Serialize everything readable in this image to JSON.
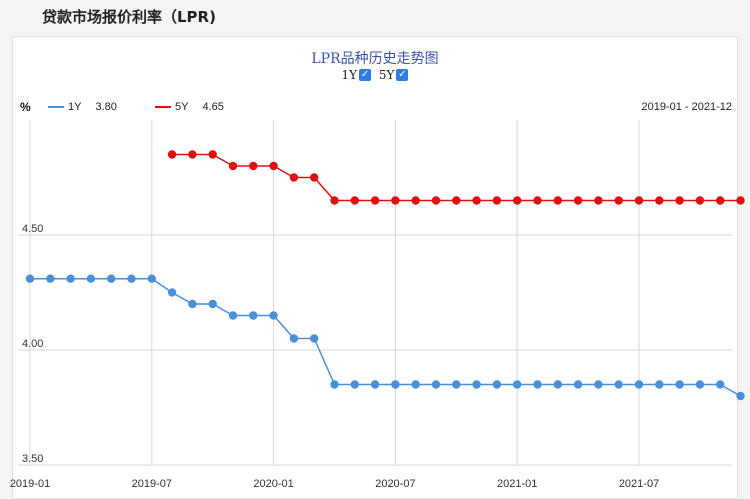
{
  "page": {
    "title": "贷款市场报价利率（LPR)"
  },
  "chart": {
    "title": "LPR品种历史走势图",
    "toggles": [
      {
        "label": "1Y",
        "checked": true
      },
      {
        "label": "5Y",
        "checked": true
      }
    ],
    "unit": "%",
    "date_range": "2019-01 - 2021-12"
  },
  "legend": [
    {
      "name": "1Y",
      "value": "3.80",
      "color": "#4a90d9"
    },
    {
      "name": "5Y",
      "value": "4.65",
      "color": "#e01010"
    }
  ],
  "chart_data": {
    "type": "line",
    "x": [
      "2019-01",
      "2019-02",
      "2019-03",
      "2019-04",
      "2019-05",
      "2019-06",
      "2019-07",
      "2019-08",
      "2019-09",
      "2019-10",
      "2019-11",
      "2019-12",
      "2020-01",
      "2020-02",
      "2020-03",
      "2020-04",
      "2020-05",
      "2020-06",
      "2020-07",
      "2020-08",
      "2020-09",
      "2020-10",
      "2020-11",
      "2020-12",
      "2021-01",
      "2021-02",
      "2021-03",
      "2021-04",
      "2021-05",
      "2021-06",
      "2021-07",
      "2021-08",
      "2021-09",
      "2021-10",
      "2021-11",
      "2021-12"
    ],
    "series": [
      {
        "name": "1Y",
        "color": "#4a90d9",
        "values": [
          4.31,
          4.31,
          4.31,
          4.31,
          4.31,
          4.31,
          4.31,
          4.25,
          4.2,
          4.2,
          4.15,
          4.15,
          4.15,
          4.05,
          4.05,
          3.85,
          3.85,
          3.85,
          3.85,
          3.85,
          3.85,
          3.85,
          3.85,
          3.85,
          3.85,
          3.85,
          3.85,
          3.85,
          3.85,
          3.85,
          3.85,
          3.85,
          3.85,
          3.85,
          3.85,
          3.8
        ]
      },
      {
        "name": "5Y",
        "color": "#e01010",
        "values": [
          null,
          null,
          null,
          null,
          null,
          null,
          null,
          4.85,
          4.85,
          4.85,
          4.8,
          4.8,
          4.8,
          4.75,
          4.75,
          4.65,
          4.65,
          4.65,
          4.65,
          4.65,
          4.65,
          4.65,
          4.65,
          4.65,
          4.65,
          4.65,
          4.65,
          4.65,
          4.65,
          4.65,
          4.65,
          4.65,
          4.65,
          4.65,
          4.65,
          4.65
        ]
      }
    ],
    "yticks": [
      "3.50",
      "4.00",
      "4.50"
    ],
    "ylim": [
      3.5,
      5.0
    ],
    "xtick_labels": [
      "2019-01",
      "2019-07",
      "2020-01",
      "2020-07",
      "2021-01",
      "2021-07"
    ],
    "xtick_index": [
      0,
      6,
      12,
      18,
      24,
      30
    ],
    "grid": true
  }
}
